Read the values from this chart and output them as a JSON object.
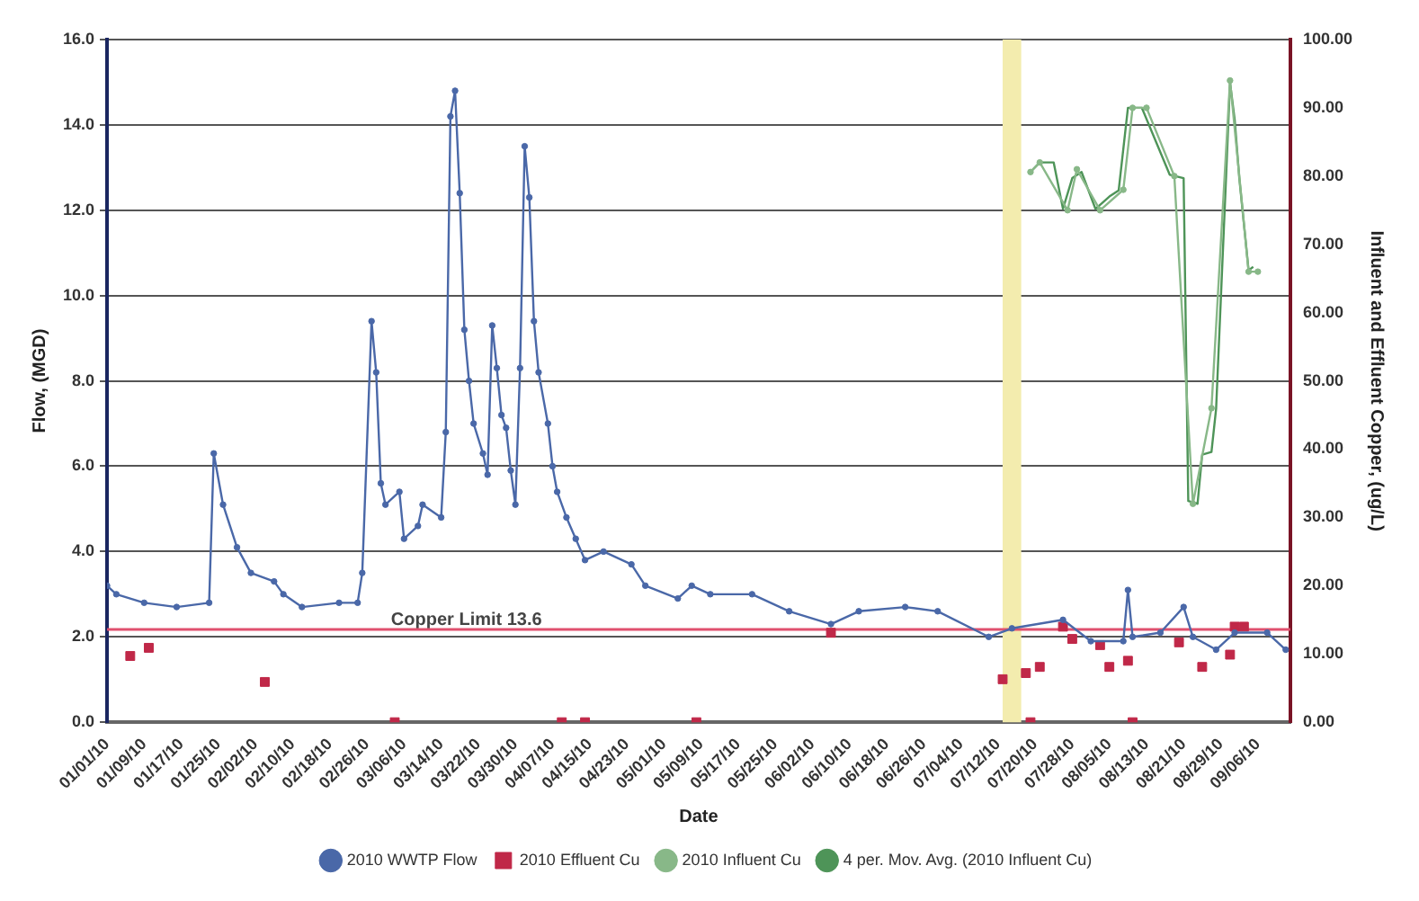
{
  "chart_data": {
    "type": "line",
    "xlabel": "Date",
    "ylabel": "Flow, (MGD)",
    "y2label": "Influent and Effluent Copper, (ug/L)",
    "xlim": [
      "2010-01-01",
      "2010-09-13"
    ],
    "xticks": [
      {
        "value": "2010-01-01",
        "label": "01/01/10"
      },
      {
        "value": "2010-01-09",
        "label": "01/09/10"
      },
      {
        "value": "2010-01-17",
        "label": "01/17/10"
      },
      {
        "value": "2010-01-25",
        "label": "01/25/10"
      },
      {
        "value": "2010-02-02",
        "label": "02/02/10"
      },
      {
        "value": "2010-02-10",
        "label": "02/10/10"
      },
      {
        "value": "2010-02-18",
        "label": "02/18/10"
      },
      {
        "value": "2010-02-26",
        "label": "02/26/10"
      },
      {
        "value": "2010-03-06",
        "label": "03/06/10"
      },
      {
        "value": "2010-03-14",
        "label": "03/14/10"
      },
      {
        "value": "2010-03-22",
        "label": "03/22/10"
      },
      {
        "value": "2010-03-30",
        "label": "03/30/10"
      },
      {
        "value": "2010-04-07",
        "label": "04/07/10"
      },
      {
        "value": "2010-04-15",
        "label": "04/15/10"
      },
      {
        "value": "2010-04-23",
        "label": "04/23/10"
      },
      {
        "value": "2010-05-01",
        "label": "05/01/10"
      },
      {
        "value": "2010-05-09",
        "label": "05/09/10"
      },
      {
        "value": "2010-05-17",
        "label": "05/17/10"
      },
      {
        "value": "2010-05-25",
        "label": "05/25/10"
      },
      {
        "value": "2010-06-02",
        "label": "06/02/10"
      },
      {
        "value": "2010-06-10",
        "label": "06/10/10"
      },
      {
        "value": "2010-06-18",
        "label": "06/18/10"
      },
      {
        "value": "2010-06-26",
        "label": "06/26/10"
      },
      {
        "value": "2010-07-04",
        "label": "07/04/10"
      },
      {
        "value": "2010-07-12",
        "label": "07/12/10"
      },
      {
        "value": "2010-07-20",
        "label": "07/20/10"
      },
      {
        "value": "2010-07-28",
        "label": "07/28/10"
      },
      {
        "value": "2010-08-05",
        "label": "08/05/10"
      },
      {
        "value": "2010-08-13",
        "label": "08/13/10"
      },
      {
        "value": "2010-08-21",
        "label": "08/21/10"
      },
      {
        "value": "2010-08-29",
        "label": "08/29/10"
      },
      {
        "value": "2010-09-06",
        "label": "09/06/10"
      }
    ],
    "ylim": [
      0,
      16
    ],
    "yticks": [
      {
        "value": 0,
        "label": "0.0"
      },
      {
        "value": 2,
        "label": "2.0"
      },
      {
        "value": 4,
        "label": "4.0"
      },
      {
        "value": 6,
        "label": "6.0"
      },
      {
        "value": 8,
        "label": "8.0"
      },
      {
        "value": 10,
        "label": "10.0"
      },
      {
        "value": 12,
        "label": "12.0"
      },
      {
        "value": 14,
        "label": "14.0"
      },
      {
        "value": 16,
        "label": "16.0"
      }
    ],
    "y2lim": [
      0,
      100
    ],
    "y2ticks": [
      {
        "value": 0,
        "label": "0.00"
      },
      {
        "value": 10,
        "label": "10.00"
      },
      {
        "value": 20,
        "label": "20.00"
      },
      {
        "value": 30,
        "label": "30.00"
      },
      {
        "value": 40,
        "label": "40.00"
      },
      {
        "value": 50,
        "label": "50.00"
      },
      {
        "value": 60,
        "label": "60.00"
      },
      {
        "value": 70,
        "label": "70.00"
      },
      {
        "value": 80,
        "label": "80.00"
      },
      {
        "value": 90,
        "label": "90.00"
      },
      {
        "value": 100,
        "label": "100.00"
      }
    ],
    "grid": "y",
    "legend": "bottom",
    "ref_lines": [
      {
        "axis": "y2",
        "value": 13.6,
        "label": "Copper Limit 13.6",
        "color": "#e0506e"
      }
    ],
    "bands": [
      {
        "axis": "x",
        "from": "2010-07-13",
        "to": "2010-07-17",
        "color": "#f3ecae"
      }
    ],
    "series": [
      {
        "name": "2010 WWTP Flow",
        "marker": "circle",
        "color": "#4a68a8",
        "x": [
          "2010-01-01",
          "2010-01-03",
          "2010-01-09",
          "2010-01-16",
          "2010-01-23",
          "2010-01-24",
          "2010-01-26",
          "2010-01-29",
          "2010-02-01",
          "2010-02-06",
          "2010-02-08",
          "2010-02-12",
          "2010-02-20",
          "2010-02-24",
          "2010-02-25",
          "2010-02-27",
          "2010-02-28",
          "2010-03-01",
          "2010-03-02",
          "2010-03-05",
          "2010-03-06",
          "2010-03-09",
          "2010-03-10",
          "2010-03-14",
          "2010-03-15",
          "2010-03-16",
          "2010-03-17",
          "2010-03-18",
          "2010-03-19",
          "2010-03-20",
          "2010-03-21",
          "2010-03-23",
          "2010-03-24",
          "2010-03-25",
          "2010-03-26",
          "2010-03-27",
          "2010-03-28",
          "2010-03-29",
          "2010-03-30",
          "2010-03-31",
          "2010-04-01",
          "2010-04-02",
          "2010-04-03",
          "2010-04-04",
          "2010-04-06",
          "2010-04-07",
          "2010-04-08",
          "2010-04-10",
          "2010-04-12",
          "2010-04-14",
          "2010-04-18",
          "2010-04-24",
          "2010-04-27",
          "2010-05-04",
          "2010-05-07",
          "2010-05-11",
          "2010-05-20",
          "2010-05-28",
          "2010-06-06",
          "2010-06-12",
          "2010-06-22",
          "2010-06-29",
          "2010-07-10",
          "2010-07-15",
          "2010-07-26",
          "2010-08-01",
          "2010-08-08",
          "2010-08-09",
          "2010-08-10",
          "2010-08-16",
          "2010-08-21",
          "2010-08-23",
          "2010-08-28",
          "2010-09-01",
          "2010-09-08",
          "2010-09-12"
        ],
        "values": [
          3.2,
          3.0,
          2.8,
          2.7,
          2.8,
          6.3,
          5.1,
          4.1,
          3.5,
          3.3,
          3.0,
          2.7,
          2.8,
          2.8,
          3.5,
          9.4,
          8.2,
          5.6,
          5.1,
          5.4,
          4.3,
          4.6,
          5.1,
          4.8,
          6.8,
          14.2,
          14.8,
          12.4,
          9.2,
          8.0,
          7.0,
          6.3,
          5.8,
          9.3,
          8.3,
          7.2,
          6.9,
          5.9,
          5.1,
          8.3,
          13.5,
          12.3,
          9.4,
          8.2,
          7.0,
          6.0,
          5.4,
          4.8,
          4.3,
          3.8,
          4.0,
          3.7,
          3.2,
          2.9,
          3.2,
          3.0,
          3.0,
          2.6,
          2.3,
          2.6,
          2.7,
          2.6,
          2.0,
          2.2,
          2.4,
          1.9,
          1.9,
          3.1,
          2.0,
          2.1,
          2.7,
          2.0,
          1.7,
          2.1,
          2.1,
          1.7
        ]
      },
      {
        "name": "2010 Effluent Cu",
        "type": "scatter",
        "marker": "square",
        "axis": "y2",
        "color": "#c02848",
        "x": [
          "2010-01-06",
          "2010-01-10",
          "2010-02-04",
          "2010-03-04",
          "2010-04-09",
          "2010-04-14",
          "2010-05-08",
          "2010-06-06",
          "2010-07-13",
          "2010-07-18",
          "2010-07-19",
          "2010-07-21",
          "2010-07-26",
          "2010-07-28",
          "2010-08-03",
          "2010-08-05",
          "2010-08-09",
          "2010-08-10",
          "2010-08-20",
          "2010-08-25",
          "2010-08-31",
          "2010-09-01",
          "2010-09-03"
        ],
        "values": [
          9.7,
          10.9,
          5.9,
          0,
          0,
          0,
          0,
          13.1,
          6.3,
          7.2,
          0,
          8.1,
          14,
          12.2,
          11.3,
          8.1,
          9,
          0,
          11.7,
          8.1,
          9.9,
          14,
          14
        ]
      },
      {
        "name": "2010 Influent Cu",
        "type": "line",
        "marker": "circle",
        "axis": "y2",
        "color": "#88b888",
        "x": [
          "2010-07-19",
          "2010-07-21",
          "2010-07-27",
          "2010-07-29",
          "2010-08-03",
          "2010-08-08",
          "2010-08-10",
          "2010-08-13",
          "2010-08-19",
          "2010-08-23",
          "2010-08-27",
          "2010-08-31",
          "2010-09-04",
          "2010-09-06"
        ],
        "values": [
          80.6,
          82,
          75,
          81,
          75,
          78,
          90,
          90,
          80,
          32,
          46,
          94,
          66,
          66
        ]
      },
      {
        "name": "4 per. Mov. Avg. (2010 Influent Cu)",
        "type": "line",
        "marker": "none",
        "axis": "y2",
        "color": "#4e9458",
        "x": [
          "2010-07-19",
          "2010-07-21",
          "2010-07-24",
          "2010-07-26",
          "2010-07-28",
          "2010-07-30",
          "2010-08-02",
          "2010-08-05",
          "2010-08-07",
          "2010-08-09",
          "2010-08-12",
          "2010-08-18",
          "2010-08-21",
          "2010-08-22",
          "2010-08-24",
          "2010-08-25",
          "2010-08-27",
          "2010-08-28",
          "2010-08-30",
          "2010-08-31",
          "2010-09-01",
          "2010-09-02",
          "2010-09-04",
          "2010-09-05"
        ],
        "values": [
          80.6,
          82,
          82,
          75.2,
          79.7,
          80.6,
          75.2,
          77,
          77.9,
          90,
          90,
          80.2,
          79.7,
          32.4,
          32,
          39.2,
          39.6,
          45.9,
          77.5,
          93.7,
          88.3,
          79.7,
          66.2,
          66.7
        ]
      }
    ]
  }
}
